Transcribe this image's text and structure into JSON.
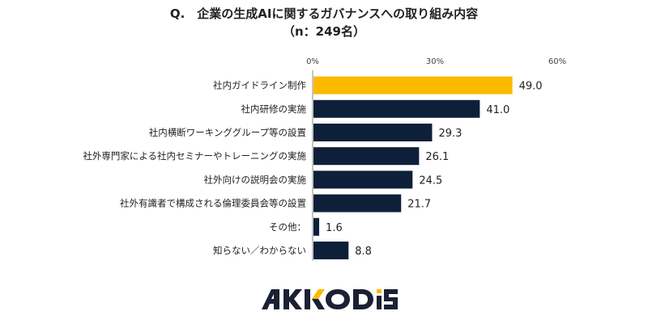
{
  "chart_data": {
    "type": "bar",
    "orientation": "horizontal",
    "title": "Q.　企業の生成AIに関するガバナンスへの取り組み内容",
    "subtitle": "（n：249名）",
    "categories": [
      "社内ガイドライン制作",
      "社内研修の実施",
      "社内横断ワーキンググループ等の設置",
      "社外専門家による社内セミナーやトレーニングの実施",
      "社外向けの説明会の実施",
      "社外有識者で構成される倫理委員会等の設置",
      "その他：",
      "知らない／わからない"
    ],
    "values": [
      49.0,
      41.0,
      29.3,
      26.1,
      24.5,
      21.7,
      1.6,
      8.8
    ],
    "value_labels": [
      "49.0",
      "41.0",
      "29.3",
      "26.1",
      "24.5",
      "21.7",
      "1.6",
      "8.8"
    ],
    "xlim": [
      0,
      60
    ],
    "ticks": [
      "0%",
      "30%",
      "60%"
    ],
    "tick_values": [
      0,
      30,
      60
    ],
    "highlight_index": 0,
    "colors": {
      "highlight": "#FBBA00",
      "bar": "#0E2039",
      "axis": "#888888"
    },
    "grid": false,
    "legend": "none"
  },
  "logo": {
    "text": "AKKODIS",
    "colors": {
      "dark": "#1B2033",
      "accent": "#FBBA00"
    }
  }
}
